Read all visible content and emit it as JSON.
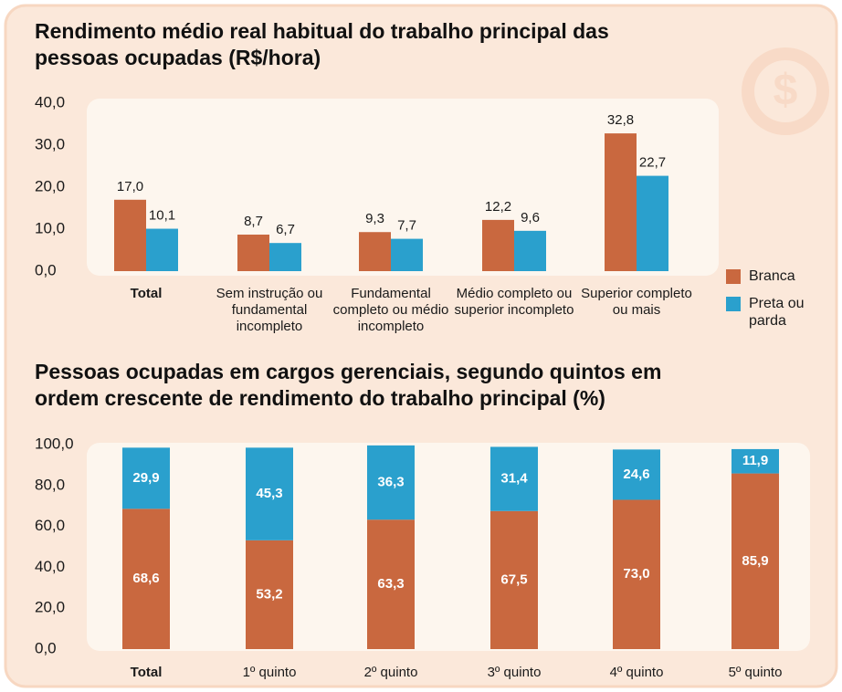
{
  "chart_data": [
    {
      "type": "bar",
      "title": "Rendimento médio real habitual do trabalho principal das pessoas ocupadas (R$/hora)",
      "categories": [
        "Total",
        "Sem instrução ou fundamental incompleto",
        "Fundamental completo ou médio incompleto",
        "Médio completo ou superior incompleto",
        "Superior completo ou mais"
      ],
      "series": [
        {
          "name": "Branca",
          "color": "#c9683f",
          "values": [
            17.0,
            8.7,
            9.3,
            12.2,
            32.8
          ],
          "value_labels": [
            "17,0",
            "8,7",
            "9,3",
            "12,2",
            "32,8"
          ]
        },
        {
          "name": "Preta ou parda",
          "color": "#2aa0cd",
          "values": [
            10.1,
            6.7,
            7.7,
            9.6,
            22.7
          ],
          "value_labels": [
            "10,1",
            "6,7",
            "7,7",
            "9,6",
            "22,7"
          ]
        }
      ],
      "ylim": [
        0,
        40
      ],
      "yticks": [
        {
          "value": 0,
          "label": "0,0"
        },
        {
          "value": 10,
          "label": "10,0"
        },
        {
          "value": 20,
          "label": "20,0"
        },
        {
          "value": 30,
          "label": "30,0"
        },
        {
          "value": 40,
          "label": "40,0"
        }
      ],
      "grid": false,
      "legend": "right"
    },
    {
      "type": "stacked_bar",
      "title": "Pessoas ocupadas em cargos gerenciais, segundo quintos em ordem crescente de rendimento do trabalho principal (%)",
      "categories": [
        "Total",
        "1º quinto",
        "2º quinto",
        "3º quinto",
        "4º quinto",
        "5º quinto"
      ],
      "series": [
        {
          "name": "Branca",
          "color": "#c9683f",
          "values": [
            68.6,
            53.2,
            63.3,
            67.5,
            73.0,
            85.9
          ],
          "value_labels": [
            "68,6",
            "53,2",
            "63,3",
            "67,5",
            "73,0",
            "85,9"
          ]
        },
        {
          "name": "Preta ou parda",
          "color": "#2aa0cd",
          "values": [
            29.9,
            45.3,
            36.3,
            31.4,
            24.6,
            11.9
          ],
          "value_labels": [
            "29,9",
            "45,3",
            "36,3",
            "31,4",
            "24,6",
            "11,9"
          ]
        }
      ],
      "ylim": [
        0,
        100
      ],
      "yticks": [
        {
          "value": 0,
          "label": "0,0"
        },
        {
          "value": 20,
          "label": "20,0"
        },
        {
          "value": 40,
          "label": "40,0"
        },
        {
          "value": 60,
          "label": "60,0"
        },
        {
          "value": 80,
          "label": "80,0"
        },
        {
          "value": 100,
          "label": "100,0"
        }
      ],
      "grid": false
    }
  ]
}
